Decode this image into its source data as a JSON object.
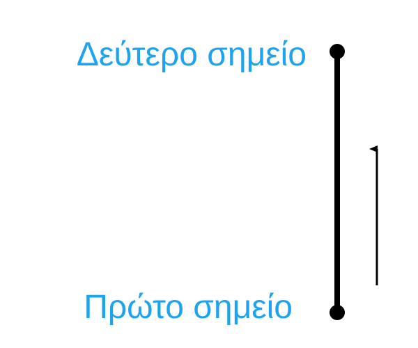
{
  "diagram": {
    "labels": {
      "second_point": "Δεύτερο σημείο",
      "first_point": "Πρώτο σημείο"
    },
    "direction_arrow": "up",
    "colors": {
      "label_text": "#1ea3ef",
      "segment": "#000000",
      "point": "#000000",
      "arrow": "#000000",
      "background": "#ffffff"
    }
  }
}
